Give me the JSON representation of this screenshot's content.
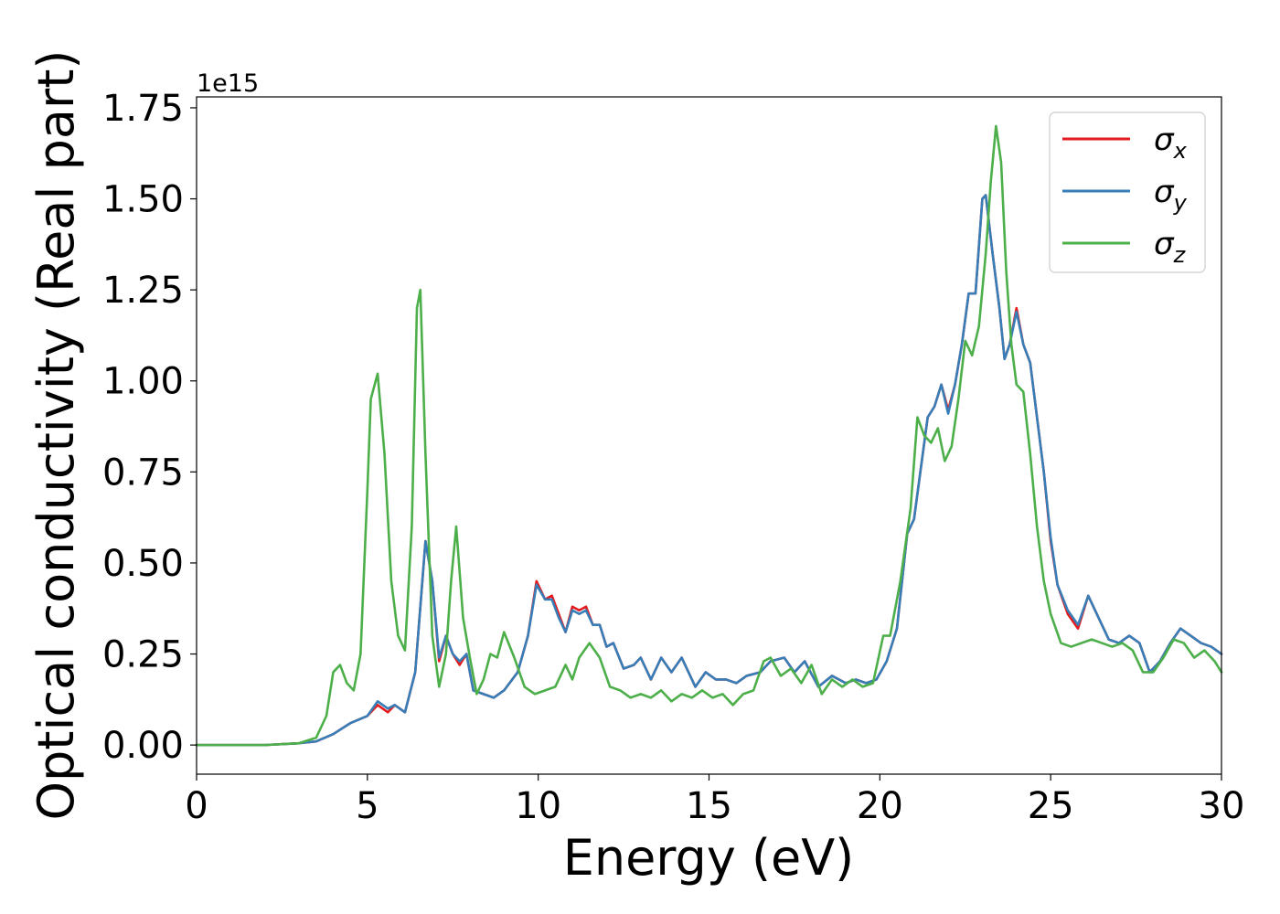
{
  "chart_data": {
    "type": "line",
    "title": "",
    "xlabel": "Energy (eV)",
    "ylabel": "Optical conductivity (Real part)",
    "y_offset_label": "1e15",
    "xlim": [
      0,
      30
    ],
    "ylim": [
      -0.08,
      1.78
    ],
    "xticks": [
      0,
      5,
      10,
      15,
      20,
      25,
      30
    ],
    "xtick_labels": [
      "0",
      "5",
      "10",
      "15",
      "20",
      "25",
      "30"
    ],
    "yticks": [
      0.0,
      0.25,
      0.5,
      0.75,
      1.0,
      1.25,
      1.5,
      1.75
    ],
    "ytick_labels": [
      "0.00",
      "0.25",
      "0.50",
      "0.75",
      "1.00",
      "1.25",
      "1.50",
      "1.75"
    ],
    "grid": false,
    "legend_position": "top-right",
    "series": [
      {
        "name": "σ",
        "subscript": "x",
        "color": "#e41a1c",
        "x": [
          0,
          2,
          3,
          3.5,
          4,
          4.5,
          5,
          5.3,
          5.6,
          5.8,
          6.1,
          6.4,
          6.7,
          6.9,
          7.1,
          7.3,
          7.5,
          7.7,
          7.9,
          8.1,
          8.4,
          8.7,
          9.0,
          9.4,
          9.7,
          9.95,
          10.2,
          10.4,
          10.6,
          10.8,
          11.0,
          11.2,
          11.4,
          11.6,
          11.8,
          12.0,
          12.2,
          12.5,
          12.8,
          13.0,
          13.3,
          13.6,
          13.9,
          14.2,
          14.6,
          14.9,
          15.2,
          15.5,
          15.8,
          16.1,
          16.5,
          16.8,
          17.2,
          17.5,
          17.8,
          18.2,
          18.6,
          19.0,
          19.3,
          19.6,
          19.9,
          20.2,
          20.5,
          20.8,
          21.0,
          21.2,
          21.4,
          21.6,
          21.8,
          22.0,
          22.2,
          22.4,
          22.6,
          22.8,
          23.0,
          23.1,
          23.3,
          23.5,
          23.65,
          23.8,
          24.0,
          24.2,
          24.4,
          24.6,
          24.8,
          25.0,
          25.2,
          25.5,
          25.8,
          26.1,
          26.4,
          26.7,
          27.0,
          27.3,
          27.6,
          27.9,
          28.2,
          28.5,
          28.8,
          29.1,
          29.4,
          29.7,
          30.0
        ],
        "y": [
          0.0,
          0.0,
          0.005,
          0.01,
          0.03,
          0.06,
          0.08,
          0.11,
          0.09,
          0.11,
          0.09,
          0.2,
          0.56,
          0.45,
          0.23,
          0.3,
          0.25,
          0.22,
          0.25,
          0.15,
          0.14,
          0.13,
          0.15,
          0.2,
          0.3,
          0.45,
          0.4,
          0.41,
          0.36,
          0.31,
          0.38,
          0.37,
          0.38,
          0.33,
          0.33,
          0.27,
          0.28,
          0.21,
          0.22,
          0.24,
          0.18,
          0.24,
          0.2,
          0.24,
          0.16,
          0.2,
          0.18,
          0.18,
          0.17,
          0.19,
          0.2,
          0.23,
          0.24,
          0.2,
          0.23,
          0.16,
          0.19,
          0.17,
          0.18,
          0.17,
          0.18,
          0.23,
          0.32,
          0.58,
          0.62,
          0.76,
          0.9,
          0.93,
          0.99,
          0.92,
          0.99,
          1.1,
          1.24,
          1.24,
          1.5,
          1.51,
          1.35,
          1.2,
          1.06,
          1.1,
          1.2,
          1.1,
          1.05,
          0.9,
          0.75,
          0.56,
          0.44,
          0.36,
          0.32,
          0.41,
          0.35,
          0.29,
          0.28,
          0.3,
          0.28,
          0.2,
          0.23,
          0.28,
          0.32,
          0.3,
          0.28,
          0.27,
          0.25
        ]
      },
      {
        "name": "σ",
        "subscript": "y",
        "color": "#377eb8",
        "x": [
          0,
          2,
          3,
          3.5,
          4,
          4.5,
          5,
          5.3,
          5.6,
          5.8,
          6.1,
          6.4,
          6.7,
          6.9,
          7.1,
          7.3,
          7.5,
          7.7,
          7.9,
          8.1,
          8.4,
          8.7,
          9.0,
          9.4,
          9.7,
          9.95,
          10.2,
          10.4,
          10.6,
          10.8,
          11.0,
          11.2,
          11.4,
          11.6,
          11.8,
          12.0,
          12.2,
          12.5,
          12.8,
          13.0,
          13.3,
          13.6,
          13.9,
          14.2,
          14.6,
          14.9,
          15.2,
          15.5,
          15.8,
          16.1,
          16.5,
          16.8,
          17.2,
          17.5,
          17.8,
          18.2,
          18.6,
          19.0,
          19.3,
          19.6,
          19.9,
          20.2,
          20.5,
          20.8,
          21.0,
          21.2,
          21.4,
          21.6,
          21.8,
          22.0,
          22.2,
          22.4,
          22.6,
          22.8,
          23.0,
          23.1,
          23.3,
          23.5,
          23.65,
          23.8,
          24.0,
          24.2,
          24.4,
          24.6,
          24.8,
          25.0,
          25.2,
          25.5,
          25.8,
          26.1,
          26.4,
          26.7,
          27.0,
          27.3,
          27.6,
          27.9,
          28.2,
          28.5,
          28.8,
          29.1,
          29.4,
          29.7,
          30.0
        ],
        "y": [
          0.0,
          0.0,
          0.005,
          0.01,
          0.03,
          0.06,
          0.08,
          0.12,
          0.1,
          0.11,
          0.09,
          0.2,
          0.56,
          0.45,
          0.24,
          0.3,
          0.25,
          0.23,
          0.25,
          0.15,
          0.14,
          0.13,
          0.15,
          0.2,
          0.3,
          0.44,
          0.4,
          0.4,
          0.35,
          0.31,
          0.37,
          0.36,
          0.37,
          0.33,
          0.33,
          0.27,
          0.28,
          0.21,
          0.22,
          0.24,
          0.18,
          0.24,
          0.2,
          0.24,
          0.16,
          0.2,
          0.18,
          0.18,
          0.17,
          0.19,
          0.2,
          0.23,
          0.24,
          0.2,
          0.23,
          0.16,
          0.19,
          0.17,
          0.18,
          0.17,
          0.18,
          0.23,
          0.32,
          0.58,
          0.62,
          0.76,
          0.9,
          0.93,
          0.99,
          0.91,
          0.99,
          1.1,
          1.24,
          1.24,
          1.5,
          1.51,
          1.35,
          1.2,
          1.06,
          1.1,
          1.19,
          1.1,
          1.05,
          0.9,
          0.75,
          0.57,
          0.44,
          0.37,
          0.33,
          0.41,
          0.35,
          0.29,
          0.28,
          0.3,
          0.28,
          0.2,
          0.23,
          0.28,
          0.32,
          0.3,
          0.28,
          0.27,
          0.25
        ]
      },
      {
        "name": "σ",
        "subscript": "z",
        "color": "#4daf4a",
        "x": [
          0,
          2,
          3,
          3.5,
          3.8,
          4.0,
          4.2,
          4.4,
          4.6,
          4.8,
          5.0,
          5.1,
          5.3,
          5.5,
          5.7,
          5.9,
          6.1,
          6.3,
          6.45,
          6.55,
          6.7,
          6.9,
          7.1,
          7.3,
          7.45,
          7.6,
          7.8,
          8.0,
          8.2,
          8.4,
          8.6,
          8.8,
          9.0,
          9.3,
          9.6,
          9.9,
          10.2,
          10.5,
          10.8,
          11.0,
          11.2,
          11.5,
          11.8,
          12.1,
          12.4,
          12.7,
          13.0,
          13.3,
          13.6,
          13.9,
          14.2,
          14.5,
          14.8,
          15.1,
          15.4,
          15.7,
          16.0,
          16.3,
          16.6,
          16.8,
          17.1,
          17.4,
          17.7,
          18.0,
          18.3,
          18.6,
          18.9,
          19.2,
          19.5,
          19.8,
          20.1,
          20.3,
          20.6,
          20.9,
          21.1,
          21.3,
          21.5,
          21.7,
          21.9,
          22.1,
          22.3,
          22.5,
          22.7,
          22.9,
          23.1,
          23.25,
          23.4,
          23.55,
          23.7,
          23.85,
          24.0,
          24.2,
          24.4,
          24.6,
          24.8,
          25.0,
          25.3,
          25.6,
          25.9,
          26.2,
          26.5,
          26.8,
          27.1,
          27.4,
          27.7,
          28.0,
          28.3,
          28.6,
          28.9,
          29.2,
          29.5,
          29.8,
          30.0
        ],
        "y": [
          0.0,
          0.0,
          0.005,
          0.02,
          0.08,
          0.2,
          0.22,
          0.17,
          0.15,
          0.25,
          0.7,
          0.95,
          1.02,
          0.8,
          0.45,
          0.3,
          0.26,
          0.6,
          1.2,
          1.25,
          0.8,
          0.3,
          0.16,
          0.25,
          0.45,
          0.6,
          0.35,
          0.24,
          0.14,
          0.18,
          0.25,
          0.24,
          0.31,
          0.24,
          0.16,
          0.14,
          0.15,
          0.16,
          0.22,
          0.18,
          0.24,
          0.28,
          0.24,
          0.16,
          0.15,
          0.13,
          0.14,
          0.13,
          0.15,
          0.12,
          0.14,
          0.13,
          0.15,
          0.13,
          0.14,
          0.11,
          0.14,
          0.15,
          0.23,
          0.24,
          0.19,
          0.21,
          0.17,
          0.22,
          0.14,
          0.18,
          0.16,
          0.18,
          0.16,
          0.17,
          0.3,
          0.3,
          0.45,
          0.65,
          0.9,
          0.85,
          0.83,
          0.87,
          0.78,
          0.82,
          0.95,
          1.11,
          1.07,
          1.15,
          1.35,
          1.55,
          1.7,
          1.6,
          1.3,
          1.1,
          0.99,
          0.97,
          0.8,
          0.6,
          0.45,
          0.36,
          0.28,
          0.27,
          0.28,
          0.29,
          0.28,
          0.27,
          0.28,
          0.26,
          0.2,
          0.2,
          0.24,
          0.29,
          0.28,
          0.24,
          0.26,
          0.23,
          0.2
        ]
      }
    ]
  }
}
